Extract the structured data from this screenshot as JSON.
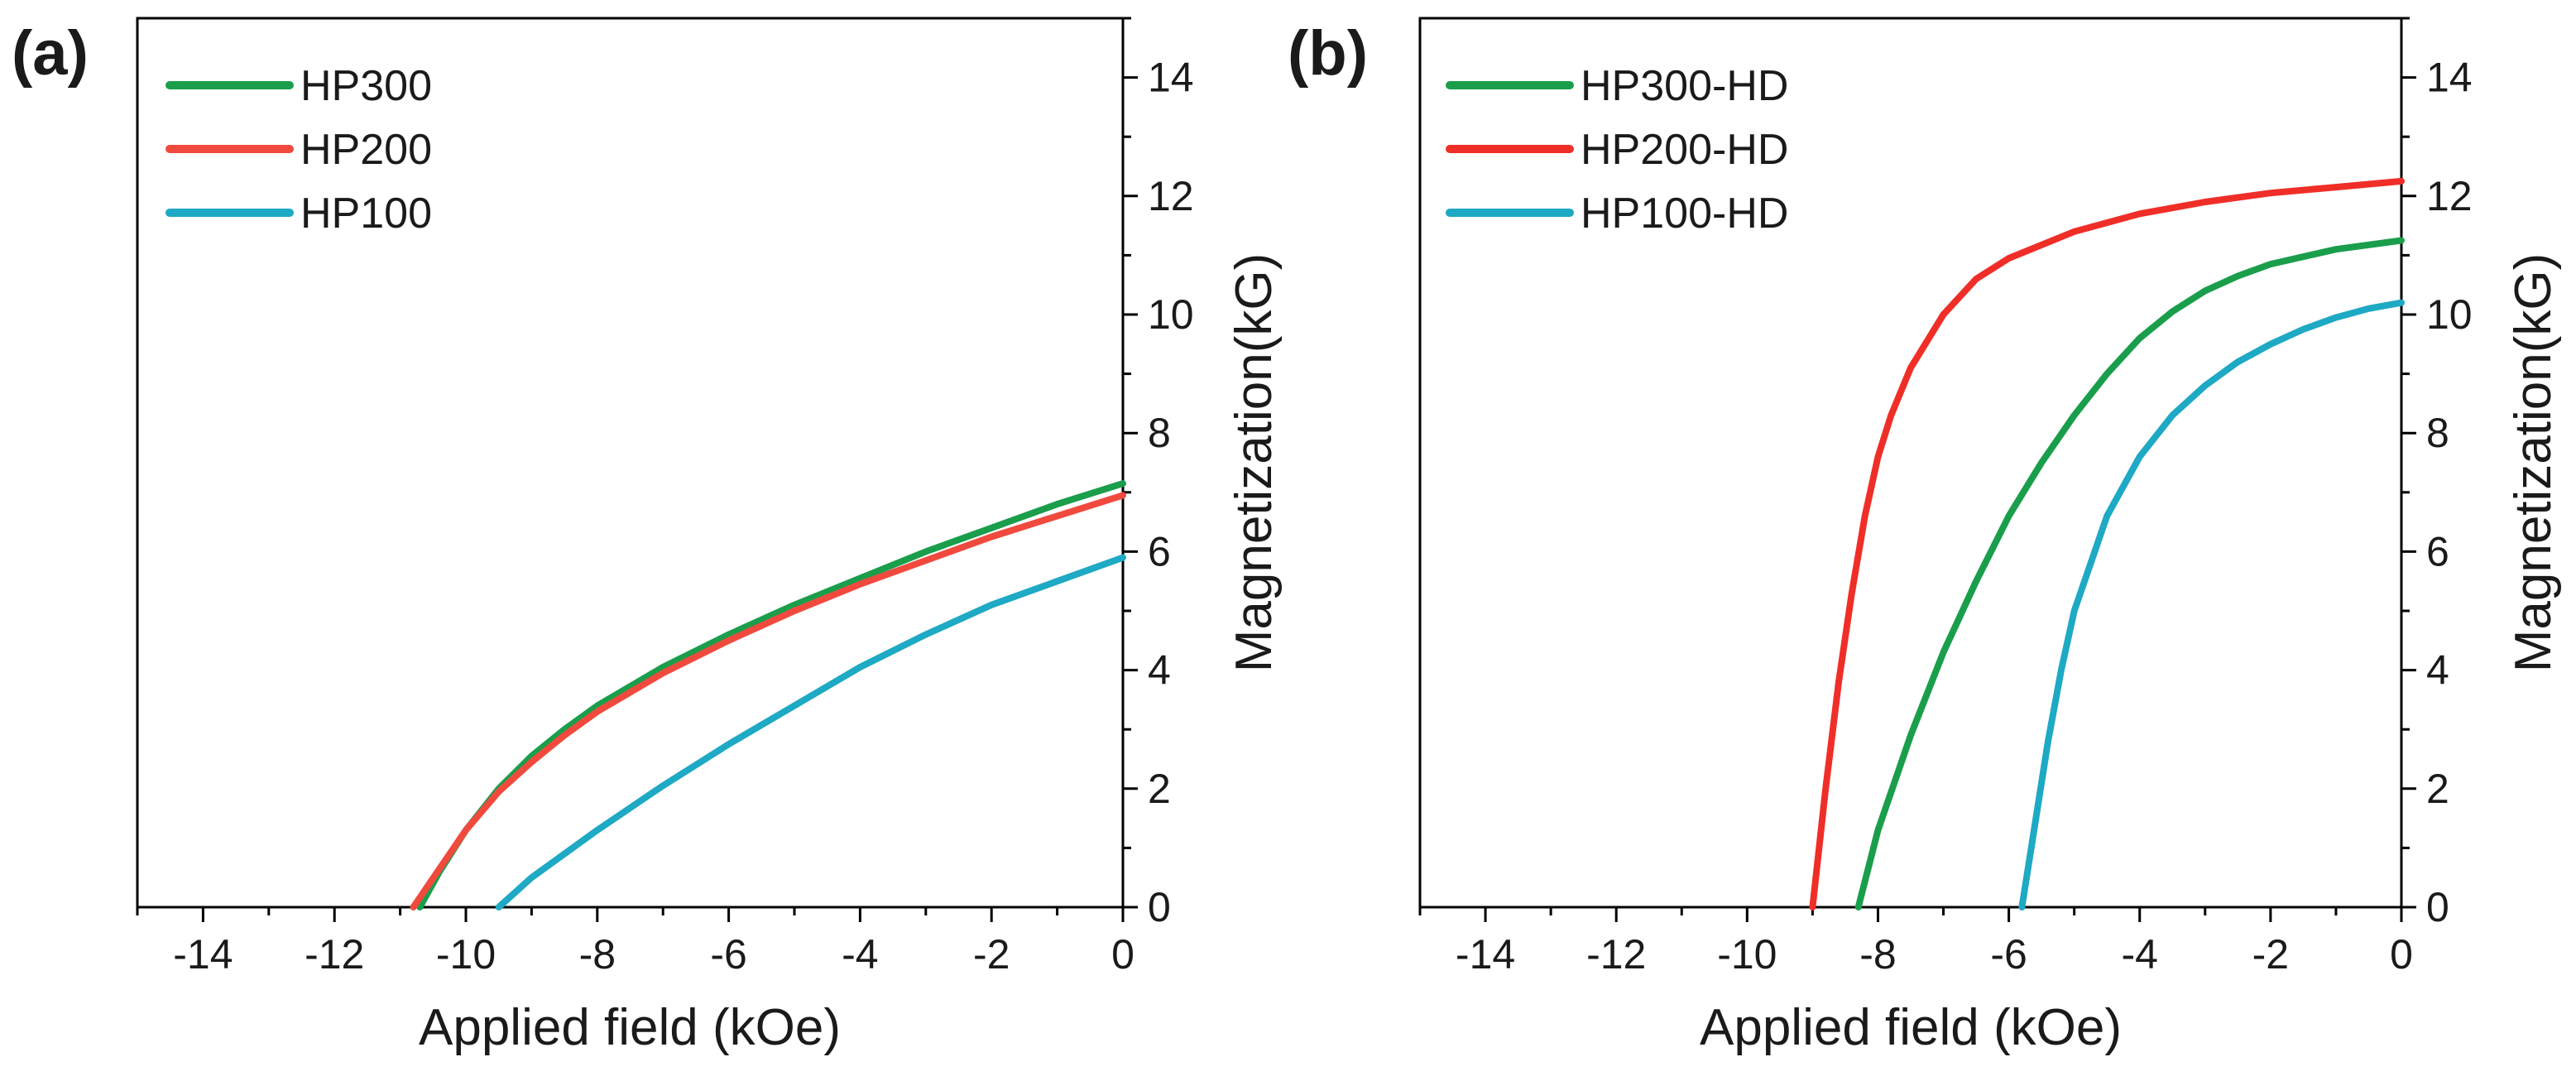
{
  "chart_data": [
    {
      "type": "line",
      "panel_label": "(a)",
      "title": "",
      "xlabel": "Applied field (kOe)",
      "ylabel": "Magnetization(kG)",
      "xlim": [
        -15,
        0
      ],
      "ylim": [
        0,
        15
      ],
      "xticks": [
        -14,
        -12,
        -10,
        -8,
        -6,
        -4,
        -2,
        0
      ],
      "yticks": [
        0,
        2,
        4,
        6,
        8,
        10,
        12,
        14
      ],
      "y_axis_side": "right",
      "grid": false,
      "legend_position": "top-left",
      "series": [
        {
          "name": "HP300",
          "color": "#1a9e4b",
          "points": [
            [
              -10.7,
              0
            ],
            [
              -10.4,
              0.6
            ],
            [
              -10.0,
              1.3
            ],
            [
              -9.5,
              2.0
            ],
            [
              -9.0,
              2.55
            ],
            [
              -8.5,
              3.0
            ],
            [
              -8.0,
              3.4
            ],
            [
              -7.0,
              4.05
            ],
            [
              -6.0,
              4.6
            ],
            [
              -5.0,
              5.1
            ],
            [
              -4.0,
              5.55
            ],
            [
              -3.0,
              6.0
            ],
            [
              -2.0,
              6.4
            ],
            [
              -1.0,
              6.8
            ],
            [
              0.0,
              7.15
            ]
          ]
        },
        {
          "name": "HP200",
          "color": "#f04a3e",
          "points": [
            [
              -10.8,
              0
            ],
            [
              -10.4,
              0.65
            ],
            [
              -10.0,
              1.3
            ],
            [
              -9.5,
              1.95
            ],
            [
              -9.0,
              2.45
            ],
            [
              -8.5,
              2.9
            ],
            [
              -8.0,
              3.3
            ],
            [
              -7.0,
              3.95
            ],
            [
              -6.0,
              4.5
            ],
            [
              -5.0,
              5.0
            ],
            [
              -4.0,
              5.45
            ],
            [
              -3.0,
              5.85
            ],
            [
              -2.0,
              6.25
            ],
            [
              -1.0,
              6.6
            ],
            [
              0.0,
              6.95
            ]
          ]
        },
        {
          "name": "HP100",
          "color": "#1ea9c4",
          "points": [
            [
              -9.5,
              0
            ],
            [
              -9.0,
              0.5
            ],
            [
              -8.0,
              1.3
            ],
            [
              -7.0,
              2.05
            ],
            [
              -6.0,
              2.75
            ],
            [
              -5.0,
              3.4
            ],
            [
              -4.0,
              4.05
            ],
            [
              -3.0,
              4.6
            ],
            [
              -2.0,
              5.1
            ],
            [
              -1.0,
              5.5
            ],
            [
              0.0,
              5.9
            ]
          ]
        }
      ]
    },
    {
      "type": "line",
      "panel_label": "(b)",
      "title": "",
      "xlabel": "Applied field (kOe)",
      "ylabel": "Magnetization(kG)",
      "xlim": [
        -15,
        0
      ],
      "ylim": [
        0,
        15
      ],
      "xticks": [
        -14,
        -12,
        -10,
        -8,
        -6,
        -4,
        -2,
        0
      ],
      "yticks": [
        0,
        2,
        4,
        6,
        8,
        10,
        12,
        14
      ],
      "y_axis_side": "right",
      "grid": false,
      "legend_position": "top-left",
      "series": [
        {
          "name": "HP300-HD",
          "color": "#1a9e4b",
          "points": [
            [
              -8.3,
              0
            ],
            [
              -8.0,
              1.3
            ],
            [
              -7.5,
              2.9
            ],
            [
              -7.0,
              4.3
            ],
            [
              -6.5,
              5.5
            ],
            [
              -6.0,
              6.6
            ],
            [
              -5.5,
              7.5
            ],
            [
              -5.0,
              8.3
            ],
            [
              -4.5,
              9.0
            ],
            [
              -4.0,
              9.6
            ],
            [
              -3.5,
              10.05
            ],
            [
              -3.0,
              10.4
            ],
            [
              -2.5,
              10.65
            ],
            [
              -2.0,
              10.85
            ],
            [
              -1.0,
              11.1
            ],
            [
              0.0,
              11.25
            ]
          ]
        },
        {
          "name": "HP200-HD",
          "color": "#f02e28",
          "points": [
            [
              -9.0,
              0
            ],
            [
              -8.8,
              2.0
            ],
            [
              -8.6,
              3.8
            ],
            [
              -8.4,
              5.3
            ],
            [
              -8.2,
              6.6
            ],
            [
              -8.0,
              7.6
            ],
            [
              -7.8,
              8.3
            ],
            [
              -7.5,
              9.1
            ],
            [
              -7.0,
              10.0
            ],
            [
              -6.5,
              10.6
            ],
            [
              -6.0,
              10.95
            ],
            [
              -5.0,
              11.4
            ],
            [
              -4.0,
              11.7
            ],
            [
              -3.0,
              11.9
            ],
            [
              -2.0,
              12.05
            ],
            [
              -1.0,
              12.15
            ],
            [
              0.0,
              12.25
            ]
          ]
        },
        {
          "name": "HP100-HD",
          "color": "#1ea9c4",
          "points": [
            [
              -5.8,
              0
            ],
            [
              -5.6,
              1.4
            ],
            [
              -5.4,
              2.8
            ],
            [
              -5.2,
              4.0
            ],
            [
              -5.0,
              5.0
            ],
            [
              -4.5,
              6.6
            ],
            [
              -4.0,
              7.6
            ],
            [
              -3.5,
              8.3
            ],
            [
              -3.0,
              8.8
            ],
            [
              -2.5,
              9.2
            ],
            [
              -2.0,
              9.5
            ],
            [
              -1.5,
              9.75
            ],
            [
              -1.0,
              9.95
            ],
            [
              -0.5,
              10.1
            ],
            [
              0.0,
              10.2
            ]
          ]
        }
      ]
    }
  ]
}
